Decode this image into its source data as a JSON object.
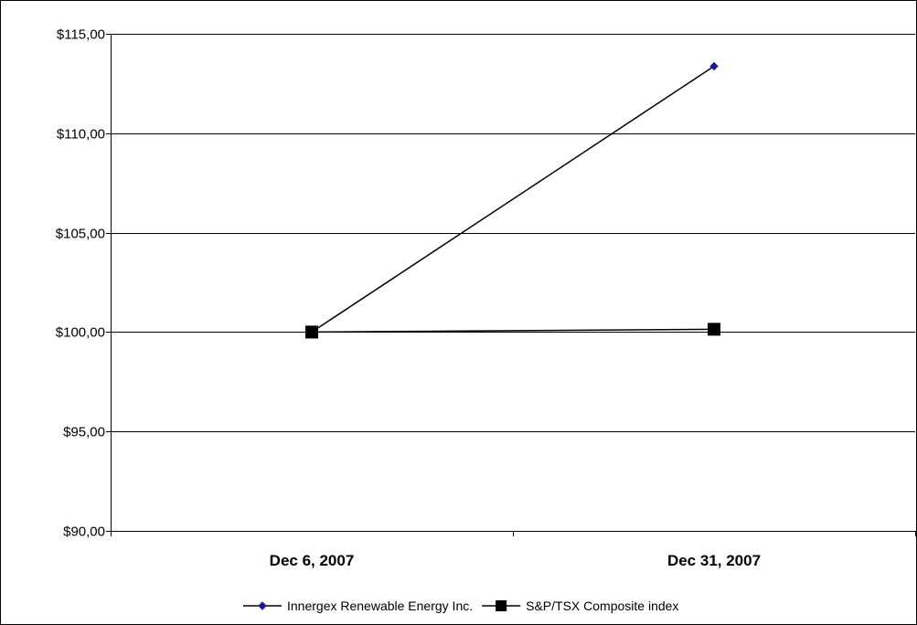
{
  "chart_data": {
    "type": "line",
    "categories": [
      "Dec 6, 2007",
      "Dec 31, 2007"
    ],
    "y_tick_labels": [
      "$90,00",
      "$95,00",
      "$100,00",
      "$105,00",
      "$110,00",
      "$115,00"
    ],
    "ylim": [
      90,
      115
    ],
    "y_ticks": [
      90,
      95,
      100,
      105,
      110,
      115
    ],
    "grid": "horizontal",
    "legend_position": "bottom",
    "series": [
      {
        "name": "Innergex Renewable Energy Inc.",
        "values": [
          100,
          113.37
        ],
        "marker": "diamond",
        "marker_color": "#1a1a8c",
        "line_color": "#000000"
      },
      {
        "name": "S&P/TSX Composite index",
        "values": [
          100,
          100.14
        ],
        "marker": "square",
        "marker_color": "#000000",
        "line_color": "#000000"
      }
    ]
  }
}
